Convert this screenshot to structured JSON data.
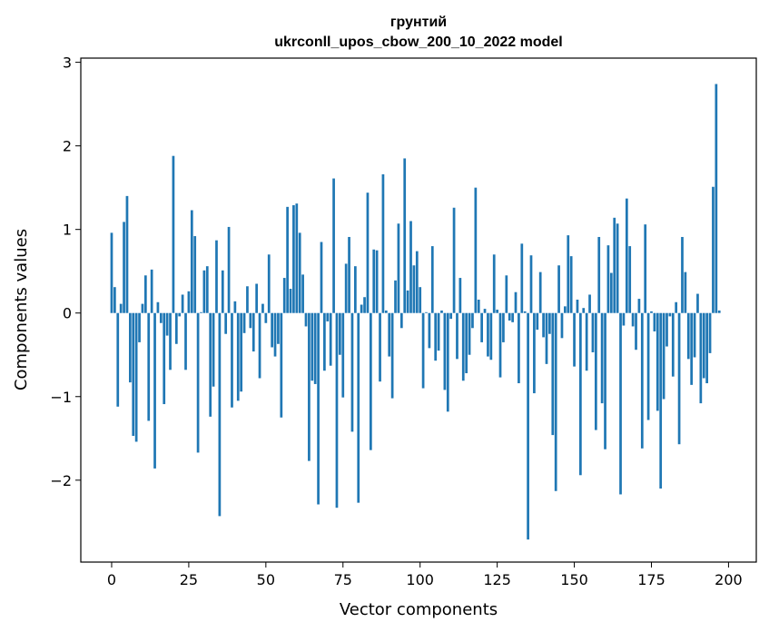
{
  "chart_data": {
    "type": "bar",
    "title": "грунтий",
    "subtitle": "ukrconll_upos_cbow_200_10_2022 model",
    "xlabel": "Vector components",
    "ylabel": "Components values",
    "xlim": [
      -10,
      209
    ],
    "ylim": [
      -2.98,
      3.05
    ],
    "xticks": [
      0,
      25,
      50,
      75,
      100,
      125,
      150,
      175,
      200
    ],
    "yticks": [
      -2,
      -1,
      0,
      1,
      2,
      3
    ],
    "ytick_labels": [
      "−2",
      "−1",
      "0",
      "1",
      "2",
      "3"
    ],
    "bar_color": "#1f77b4",
    "grid": false,
    "values": [
      0.96,
      0.31,
      -1.12,
      0.11,
      1.09,
      1.4,
      -0.83,
      -1.47,
      -1.54,
      -0.35,
      0.11,
      0.45,
      -1.29,
      0.52,
      -1.86,
      0.13,
      -0.12,
      -1.09,
      -0.27,
      -0.68,
      1.88,
      -0.37,
      -0.04,
      0.22,
      -0.68,
      0.26,
      1.23,
      0.92,
      -1.67,
      0.01,
      0.51,
      0.56,
      -1.24,
      -0.88,
      0.87,
      -2.43,
      0.51,
      -0.25,
      1.03,
      -1.13,
      0.14,
      -1.05,
      -0.94,
      -0.24,
      0.32,
      -0.18,
      -0.46,
      0.35,
      -0.78,
      0.11,
      -0.12,
      0.7,
      -0.41,
      -0.52,
      -0.37,
      -1.25,
      0.42,
      1.27,
      0.29,
      1.29,
      1.31,
      0.96,
      0.46,
      -0.16,
      -1.77,
      -0.81,
      -0.85,
      -2.29,
      0.85,
      -0.69,
      -0.1,
      -0.63,
      1.61,
      -2.33,
      -0.5,
      -1.01,
      0.59,
      0.91,
      -1.42,
      0.56,
      -2.27,
      0.1,
      0.19,
      1.44,
      -1.64,
      0.76,
      0.75,
      -0.82,
      1.66,
      0.03,
      -0.52,
      -1.02,
      0.39,
      1.07,
      -0.18,
      1.85,
      0.27,
      1.1,
      0.57,
      0.74,
      0.31,
      -0.9,
      0.01,
      -0.42,
      0.8,
      -0.57,
      -0.45,
      0.03,
      -0.92,
      -1.18,
      -0.07,
      1.26,
      -0.55,
      0.42,
      -0.81,
      -0.72,
      -0.5,
      -0.18,
      1.5,
      0.16,
      -0.35,
      0.05,
      -0.52,
      -0.56,
      0.7,
      0.04,
      -0.77,
      -0.35,
      0.45,
      -0.09,
      -0.11,
      0.25,
      -0.84,
      0.83,
      0.02,
      -2.71,
      0.69,
      -0.96,
      -0.2,
      0.49,
      -0.29,
      -0.61,
      -0.25,
      -1.46,
      -2.13,
      0.57,
      -0.3,
      0.08,
      0.93,
      0.68,
      -0.64,
      0.16,
      -1.94,
      0.06,
      -0.69,
      0.22,
      -0.47,
      -1.4,
      0.91,
      -1.08,
      -1.63,
      0.81,
      0.48,
      1.14,
      1.07,
      -2.17,
      -0.15,
      1.37,
      0.8,
      -0.16,
      -0.44,
      0.17,
      -1.62,
      1.06,
      -1.28,
      0.02,
      -0.22,
      -1.17,
      -2.1,
      -1.03,
      -0.4,
      -0.04,
      -0.76,
      0.13,
      -1.57,
      0.91,
      0.49,
      -0.55,
      -0.86,
      -0.53,
      0.23,
      -1.08,
      -0.78,
      -0.84,
      -0.48,
      1.51,
      2.74,
      0.03
    ]
  }
}
